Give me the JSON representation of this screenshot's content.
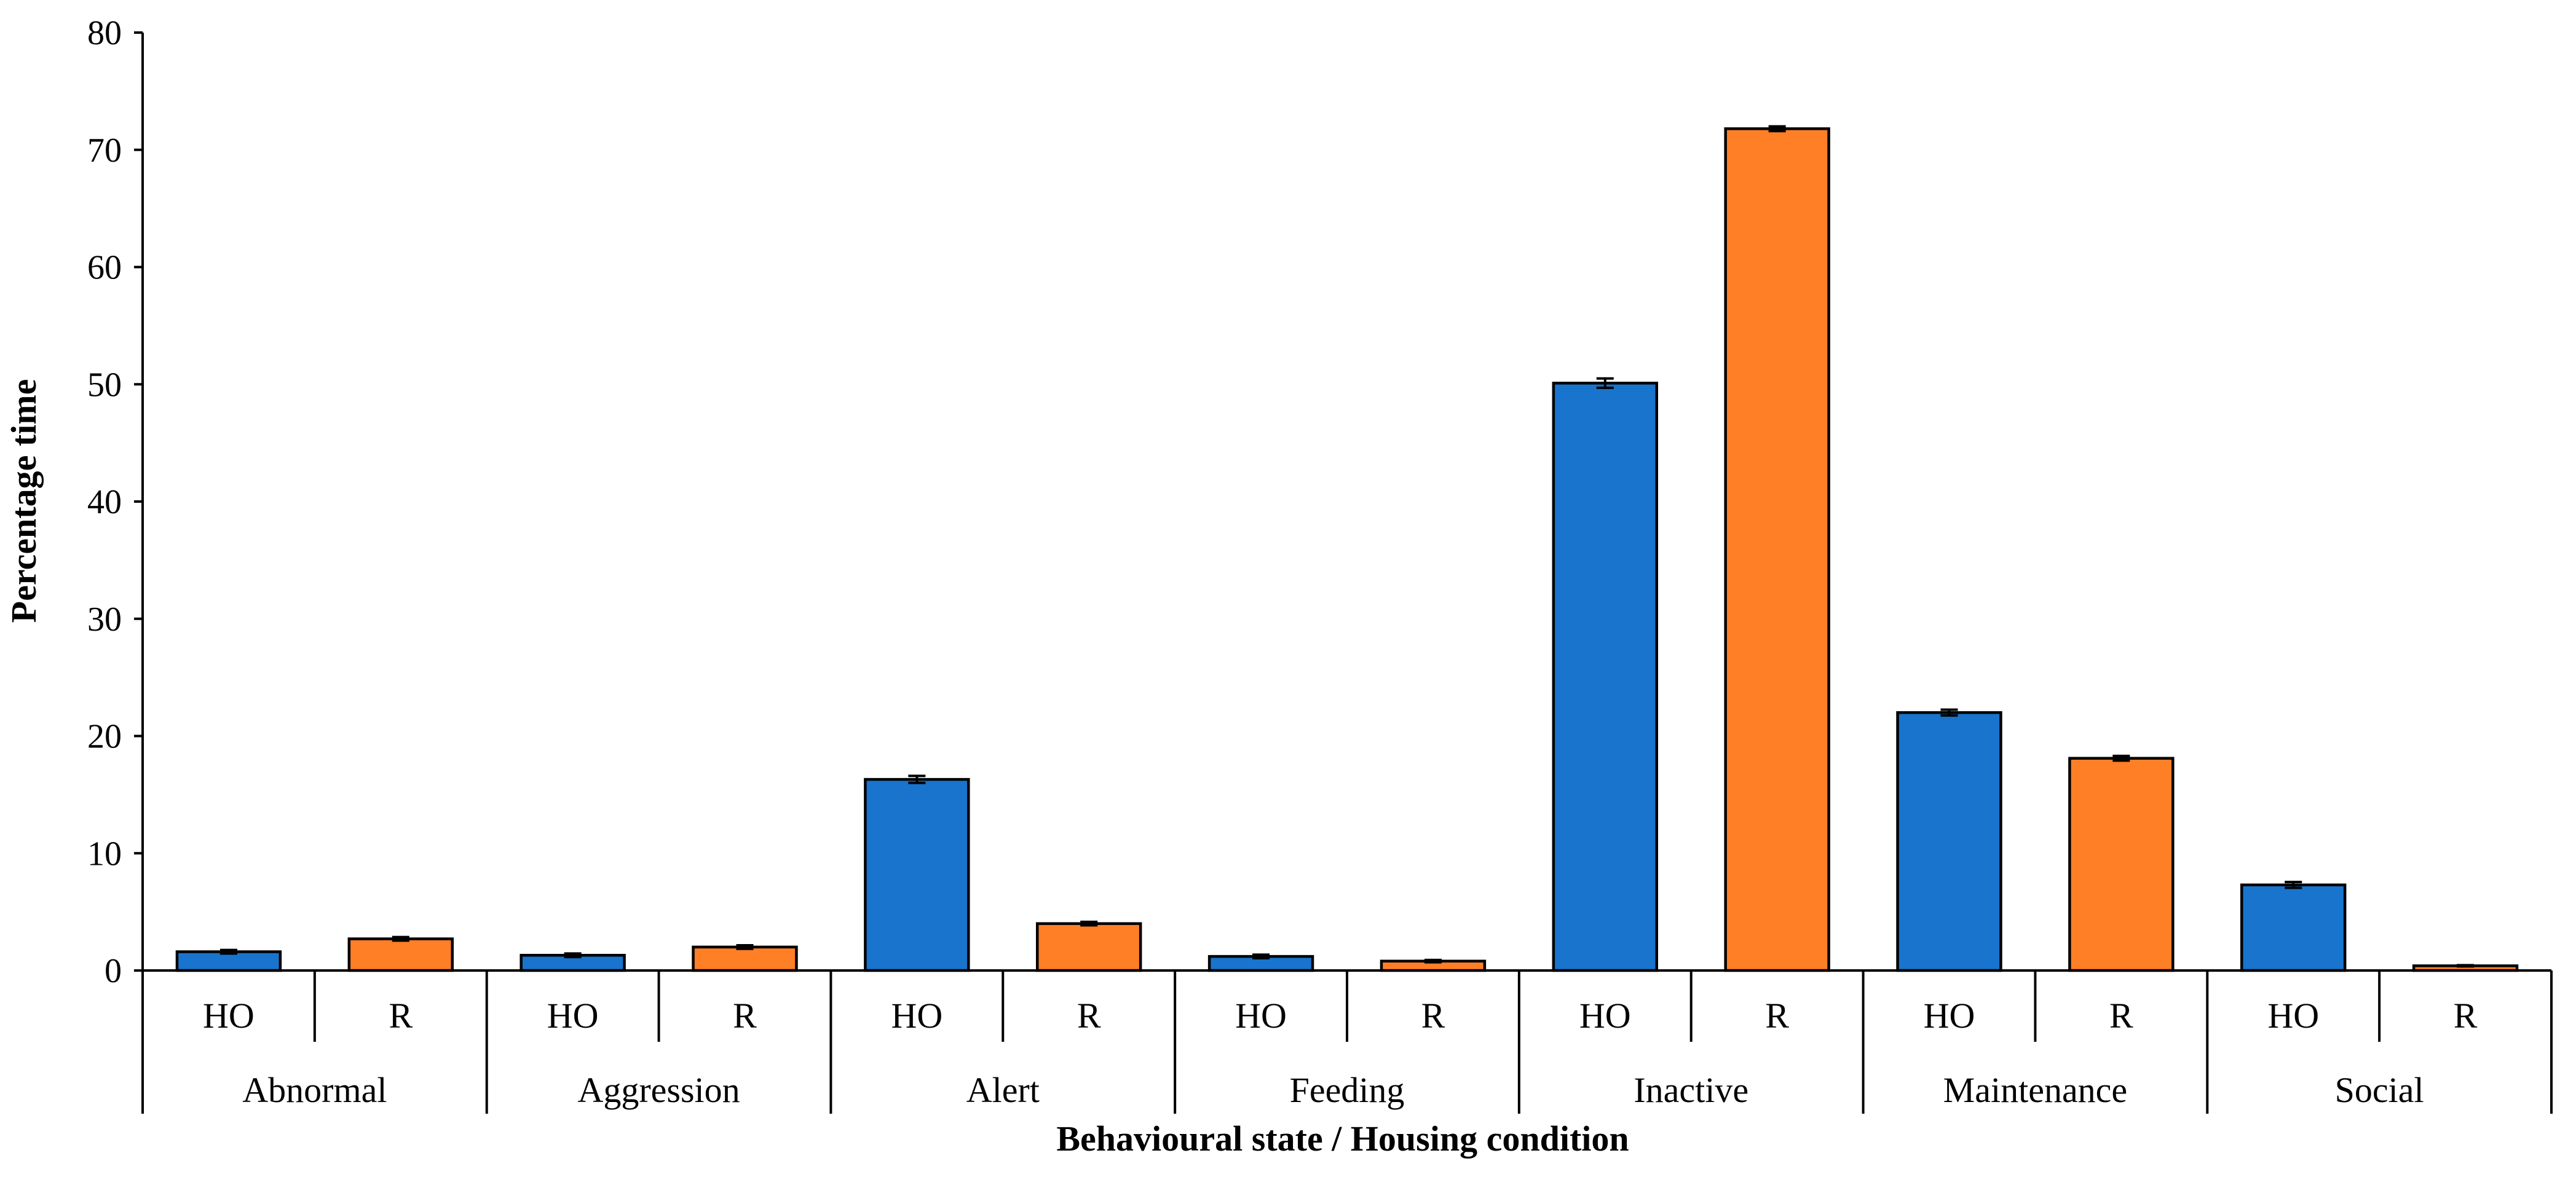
{
  "chart_data": {
    "type": "bar",
    "title": "",
    "xlabel": "Behavioural state / Housing condition",
    "ylabel": "Percentage time",
    "ylim": [
      0,
      80
    ],
    "yticks": [
      0,
      10,
      20,
      30,
      40,
      50,
      60,
      70,
      80
    ],
    "groups": [
      "Abnormal",
      "Aggression",
      "Alert",
      "Feeding",
      "Inactive",
      "Maintenance",
      "Social"
    ],
    "subcategories": [
      "HO",
      "R"
    ],
    "series": [
      {
        "name": "HO",
        "color": "#1874CD",
        "values": [
          1.6,
          1.3,
          16.3,
          1.2,
          50.1,
          22.0,
          7.3
        ],
        "errors": [
          0.15,
          0.15,
          0.3,
          0.15,
          0.4,
          0.25,
          0.25
        ]
      },
      {
        "name": "R",
        "color": "#FF7F27",
        "values": [
          2.7,
          2.0,
          4.0,
          0.8,
          71.8,
          18.1,
          0.4
        ],
        "errors": [
          0.15,
          0.15,
          0.15,
          0.1,
          0.2,
          0.2,
          0.05
        ]
      }
    ],
    "grid": false,
    "legend": "none"
  }
}
